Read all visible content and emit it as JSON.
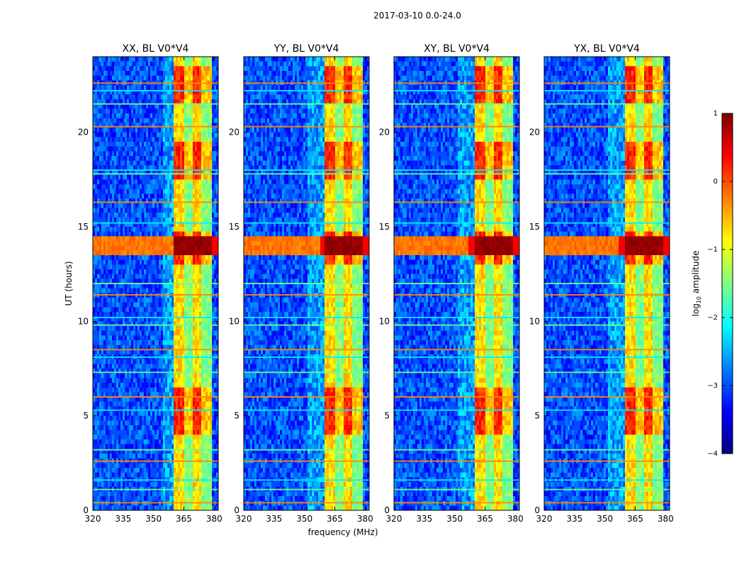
{
  "suptitle": "2017-03-10 0.0-24.0",
  "chart_data": {
    "type": "heatmap",
    "panels": [
      {
        "title": "XX, BL V0*V4",
        "polarization": "XX"
      },
      {
        "title": "YY, BL V0*V4",
        "polarization": "YY"
      },
      {
        "title": "XY, BL V0*V4",
        "polarization": "XY"
      },
      {
        "title": "YX, BL V0*V4",
        "polarization": "YX"
      }
    ],
    "xlabel": "frequency (MHz)",
    "ylabel": "UT (hours)",
    "xlim": [
      320,
      382
    ],
    "ylim": [
      0,
      24
    ],
    "xticks": [
      320,
      335,
      350,
      365,
      380
    ],
    "yticks": [
      0,
      5,
      10,
      15,
      20
    ],
    "colorbar": {
      "label": "log10 amplitude",
      "label_base": "log",
      "label_sub": "10",
      "label_rest": " amplitude",
      "min": -4,
      "max": 1,
      "ticks": [
        1,
        0,
        -1,
        -2,
        -3,
        -4
      ],
      "tick_labels": [
        "1",
        "0",
        "−1",
        "−2",
        "−3",
        "−4"
      ],
      "colormap": "jet"
    },
    "features": {
      "background_level": -3.0,
      "strong_band_MHz": [
        [
          360,
          379
        ]
      ],
      "band_strong_hours": [
        [
          4.0,
          6.5
        ],
        [
          13.0,
          14.8
        ],
        [
          17.5,
          19.5
        ],
        [
          21.5,
          23.5
        ]
      ],
      "broadband_rfi_hours": [
        [
          13.4,
          14.4
        ]
      ],
      "horizontal_rfi_lines_hours": [
        0.4,
        1.1,
        1.6,
        2.6,
        3.2,
        5.3,
        6.0,
        7.3,
        8.1,
        8.5,
        9.8,
        10.2,
        11.4,
        12.0,
        15.2,
        16.3,
        17.8,
        18.0,
        20.3,
        21.5,
        22.2,
        22.6
      ]
    }
  }
}
